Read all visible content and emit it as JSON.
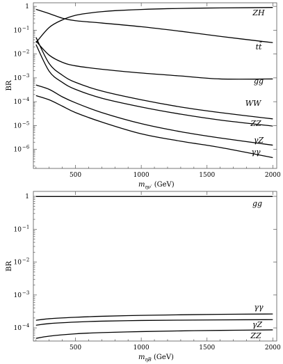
{
  "chart_data": [
    {
      "type": "line",
      "xlabel_main": "m",
      "xlabel_sub": "ην′",
      "xlabel_unit": "(GeV)",
      "ylabel": "BR",
      "xlim": [
        180,
        2030
      ],
      "ylim_log10": [
        -6.8,
        0.15
      ],
      "xticks": [
        500,
        1000,
        1500,
        2000
      ],
      "yticks": [
        {
          "exp": 0,
          "label": "1"
        },
        {
          "exp": -1,
          "label": "10"
        },
        {
          "exp": -2,
          "label": "10"
        },
        {
          "exp": -3,
          "label": "10"
        },
        {
          "exp": -4,
          "label": "10"
        },
        {
          "exp": -5,
          "label": "10"
        },
        {
          "exp": -6,
          "label": "10"
        }
      ],
      "ytick_exponents": [
        "",
        "−1",
        "−2",
        "−3",
        "−4",
        "−5",
        "−6"
      ],
      "grid": false,
      "series": [
        {
          "name": "ZH",
          "x": [
            200,
            300,
            400,
            500,
            600,
            700,
            800,
            1000,
            1200,
            1500,
            1800,
            2000
          ],
          "y": [
            0.03,
            0.13,
            0.27,
            0.42,
            0.52,
            0.6,
            0.66,
            0.74,
            0.8,
            0.85,
            0.88,
            0.9
          ]
        },
        {
          "name": "tt̄",
          "x": [
            200,
            300,
            400,
            500,
            700,
            1000,
            1300,
            1600,
            2000
          ],
          "y": [
            0.75,
            0.5,
            0.32,
            0.25,
            0.2,
            0.14,
            0.09,
            0.055,
            0.03
          ]
        },
        {
          "name": "gg",
          "x": [
            200,
            300,
            400,
            500,
            700,
            1000,
            1300,
            1600,
            2000
          ],
          "y": [
            0.035,
            0.009,
            0.0045,
            0.0032,
            0.0023,
            0.0016,
            0.0012,
            0.0009,
            0.0009
          ]
        },
        {
          "name": "WW",
          "x": [
            200,
            300,
            400,
            500,
            700,
            1000,
            1300,
            1600,
            2000
          ],
          "y": [
            0.05,
            0.004,
            0.0013,
            0.00065,
            0.00028,
            0.00012,
            6e-05,
            3.5e-05,
            1.9e-05
          ]
        },
        {
          "name": "ZZ",
          "x": [
            200,
            300,
            400,
            500,
            700,
            1000,
            1300,
            1600,
            2000
          ],
          "y": [
            0.025,
            0.0019,
            0.00065,
            0.00033,
            0.00014,
            6e-05,
            3e-05,
            1.7e-05,
            9.5e-06
          ]
        },
        {
          "name": "γZ",
          "x": [
            200,
            300,
            400,
            500,
            700,
            1000,
            1300,
            1600,
            2000
          ],
          "y": [
            0.0005,
            0.00033,
            0.00016,
            9e-05,
            3.5e-05,
            1.2e-05,
            5.5e-06,
            3e-06,
            1.5e-06
          ]
        },
        {
          "name": "γγ",
          "x": [
            200,
            300,
            400,
            500,
            700,
            1000,
            1300,
            1600,
            2000
          ],
          "y": [
            0.00018,
            0.00012,
            6.5e-05,
            3.5e-05,
            1.4e-05,
            4.5e-06,
            2.2e-06,
            1.2e-06,
            4.5e-07
          ]
        }
      ]
    },
    {
      "type": "line",
      "xlabel_main": "m",
      "xlabel_sub": "ηB",
      "xlabel_unit": "(GeV)",
      "ylabel": "BR",
      "xlim": [
        180,
        2030
      ],
      "ylim_log10": [
        -4.4,
        0.15
      ],
      "xticks": [
        500,
        1000,
        1500,
        2000
      ],
      "yticks": [
        {
          "exp": 0,
          "label": "1"
        },
        {
          "exp": -1,
          "label": "10"
        },
        {
          "exp": -2,
          "label": "10"
        },
        {
          "exp": -3,
          "label": "10"
        },
        {
          "exp": -4,
          "label": "10"
        }
      ],
      "ytick_exponents": [
        "",
        "−1",
        "−2",
        "−3",
        "−4"
      ],
      "grid": false,
      "series": [
        {
          "name": "gg",
          "x": [
            200,
            500,
            1000,
            1500,
            2000
          ],
          "y": [
            0.99,
            0.99,
            0.99,
            0.99,
            0.99
          ]
        },
        {
          "name": "γγ",
          "x": [
            200,
            300,
            500,
            700,
            1000,
            1300,
            1600,
            2000
          ],
          "y": [
            0.00017,
            0.00019,
            0.00021,
            0.000225,
            0.00024,
            0.00025,
            0.000258,
            0.000265
          ]
        },
        {
          "name": "γZ",
          "x": [
            200,
            300,
            500,
            700,
            1000,
            1300,
            1600,
            2000
          ],
          "y": [
            0.00012,
            0.000135,
            0.00015,
            0.00016,
            0.000168,
            0.000172,
            0.000175,
            0.000178
          ]
        },
        {
          "name": "ZZ",
          "x": [
            200,
            300,
            500,
            700,
            1000,
            1300,
            1600,
            2000
          ],
          "y": [
            4.8e-05,
            5.6e-05,
            6.6e-05,
            7.2e-05,
            7.7e-05,
            8.1e-05,
            8.4e-05,
            8.7e-05
          ]
        }
      ]
    }
  ]
}
